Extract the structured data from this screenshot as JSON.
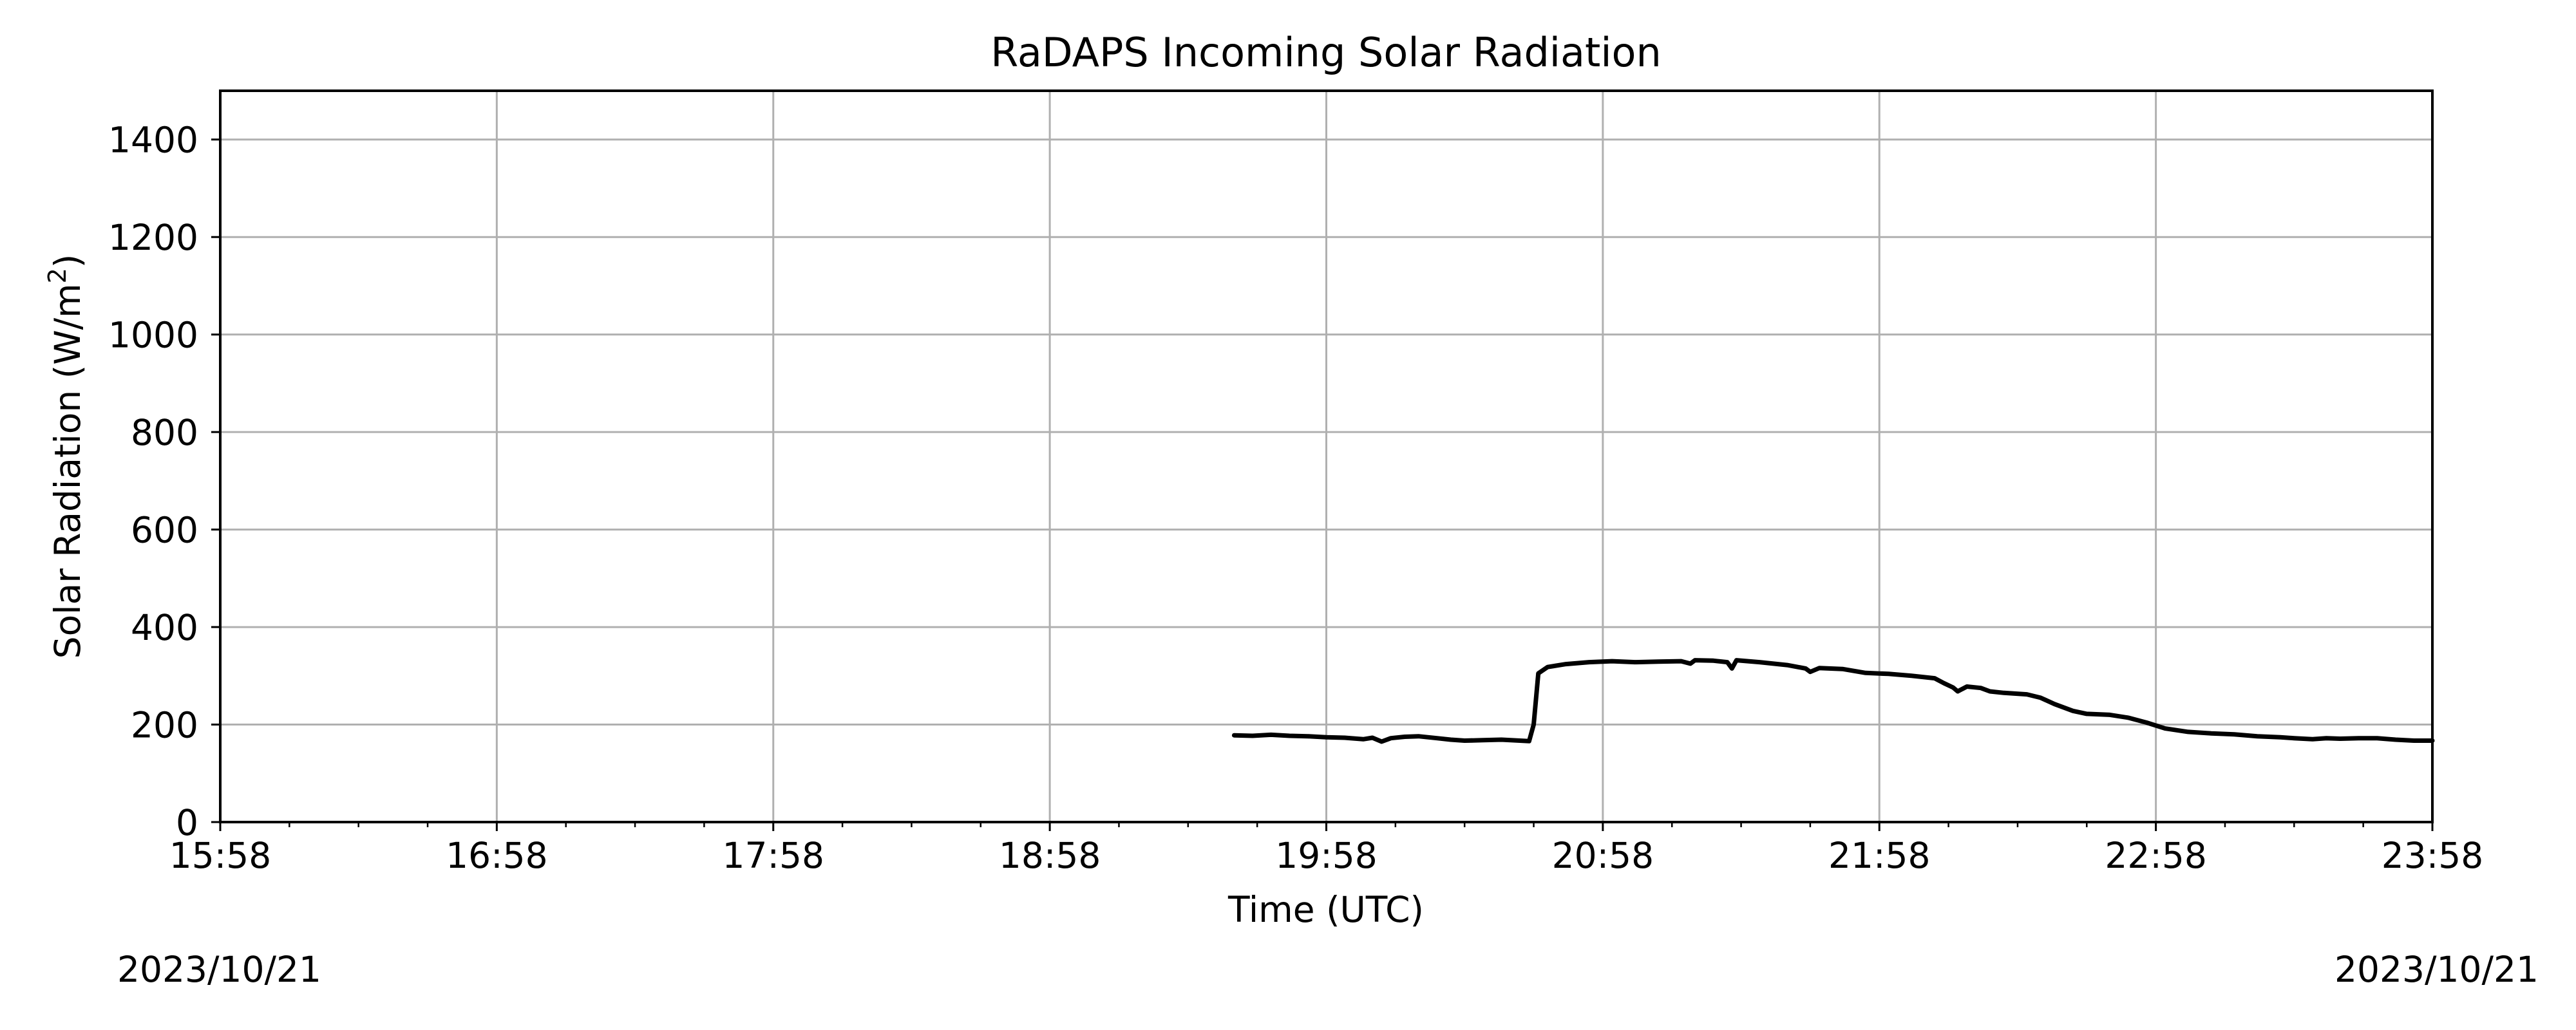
{
  "chart_data": {
    "type": "line",
    "title": "RaDAPS Incoming Solar Radiation",
    "xlabel": "Time (UTC)",
    "ylabel_main": "Solar Radiation (W/m",
    "ylabel_sup": "2",
    "ylabel_close": ")",
    "xlim": [
      "15:58",
      "23:58"
    ],
    "ylim": [
      0,
      1500
    ],
    "x_ticks": [
      "15:58",
      "16:58",
      "17:58",
      "18:58",
      "19:58",
      "20:58",
      "21:58",
      "22:58",
      "23:58"
    ],
    "y_ticks": [
      0,
      200,
      400,
      600,
      800,
      1000,
      1200,
      1400
    ],
    "grid": true,
    "legend": "none",
    "date_left": "2023/10/21",
    "date_right": "2023/10/21",
    "series": [
      {
        "color": "#000000",
        "points": [
          [
            "19:38",
            178
          ],
          [
            "19:42",
            177
          ],
          [
            "19:46",
            179
          ],
          [
            "19:50",
            177
          ],
          [
            "19:54",
            176
          ],
          [
            "19:58",
            174
          ],
          [
            "20:02",
            173
          ],
          [
            "20:06",
            170
          ],
          [
            "20:08",
            173
          ],
          [
            "20:10",
            165
          ],
          [
            "20:12",
            172
          ],
          [
            "20:15",
            175
          ],
          [
            "20:18",
            176
          ],
          [
            "20:22",
            172
          ],
          [
            "20:25",
            169
          ],
          [
            "20:28",
            167
          ],
          [
            "20:32",
            168
          ],
          [
            "20:36",
            169
          ],
          [
            "20:40",
            167
          ],
          [
            "20:42",
            166
          ],
          [
            "20:43",
            200
          ],
          [
            "20:44",
            305
          ],
          [
            "20:46",
            318
          ],
          [
            "20:50",
            324
          ],
          [
            "20:55",
            328
          ],
          [
            "21:00",
            330
          ],
          [
            "21:05",
            328
          ],
          [
            "21:10",
            329
          ],
          [
            "21:15",
            330
          ],
          [
            "21:17",
            325
          ],
          [
            "21:18",
            332
          ],
          [
            "21:22",
            331
          ],
          [
            "21:25",
            328
          ],
          [
            "21:26",
            315
          ],
          [
            "21:27",
            332
          ],
          [
            "21:32",
            328
          ],
          [
            "21:38",
            322
          ],
          [
            "21:42",
            315
          ],
          [
            "21:43",
            308
          ],
          [
            "21:45",
            316
          ],
          [
            "21:50",
            314
          ],
          [
            "21:55",
            306
          ],
          [
            "22:00",
            304
          ],
          [
            "22:05",
            300
          ],
          [
            "22:10",
            295
          ],
          [
            "22:12",
            285
          ],
          [
            "22:14",
            276
          ],
          [
            "22:15",
            268
          ],
          [
            "22:17",
            278
          ],
          [
            "22:20",
            275
          ],
          [
            "22:22",
            268
          ],
          [
            "22:25",
            265
          ],
          [
            "22:30",
            262
          ],
          [
            "22:33",
            255
          ],
          [
            "22:36",
            242
          ],
          [
            "22:40",
            228
          ],
          [
            "22:43",
            222
          ],
          [
            "22:48",
            220
          ],
          [
            "22:52",
            214
          ],
          [
            "22:56",
            204
          ],
          [
            "23:00",
            192
          ],
          [
            "23:05",
            185
          ],
          [
            "23:10",
            182
          ],
          [
            "23:15",
            180
          ],
          [
            "23:20",
            176
          ],
          [
            "23:25",
            174
          ],
          [
            "23:28",
            172
          ],
          [
            "23:32",
            170
          ],
          [
            "23:35",
            172
          ],
          [
            "23:38",
            171
          ],
          [
            "23:42",
            172
          ],
          [
            "23:46",
            172
          ],
          [
            "23:50",
            169
          ],
          [
            "23:54",
            167
          ],
          [
            "23:58",
            167
          ]
        ]
      }
    ]
  }
}
